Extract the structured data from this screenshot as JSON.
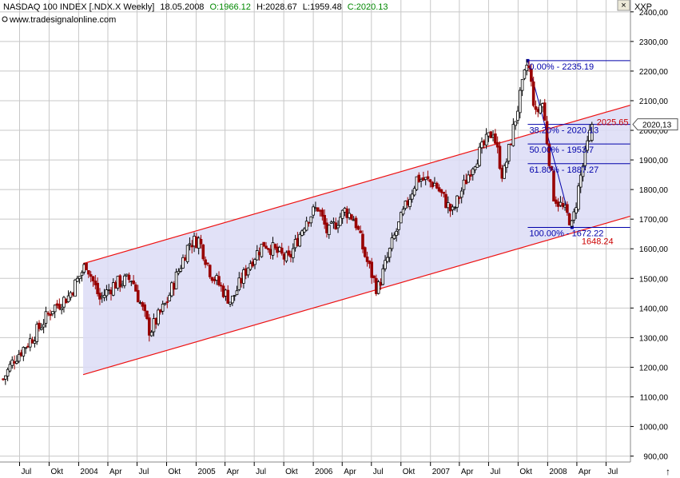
{
  "header": {
    "title": "NASDAQ 100 INDEX [.NDX.X  Weekly]",
    "date": "18.05.2008",
    "open": "O:1966.12",
    "high": "H:2028.67",
    "low": "L:1959.48",
    "close": "C:2020.13",
    "source": "www.tradesignalonline.com",
    "symbol": "XXP"
  },
  "window_buttons": {
    "close": "×",
    "scroll": "↑"
  },
  "price_badge": "2020,13",
  "colors": {
    "up": "#000000",
    "down": "#990000",
    "channel_fill": "#dcdcf6",
    "channel_line": "#ee1111",
    "fib": "#0000aa",
    "grid": "#c8c8c8"
  },
  "chart_data": {
    "type": "candlestick",
    "title": "NASDAQ 100 INDEX [.NDX.X  Weekly]",
    "y_ticks": [
      "900,00",
      "1000,00",
      "1100,00",
      "1200,00",
      "1300,00",
      "1400,00",
      "1500,00",
      "1600,00",
      "1700,00",
      "1800,00",
      "1900,00",
      "2000,00",
      "2100,00",
      "2200,00",
      "2300,00",
      "2400,00"
    ],
    "ylim": [
      880,
      2440
    ],
    "x_ticks": [
      {
        "label": "Jul",
        "date": "2003-07-01"
      },
      {
        "label": "Okt",
        "date": "2003-10-01"
      },
      {
        "label": "2004",
        "date": "2004-01-01"
      },
      {
        "label": "Apr",
        "date": "2004-04-01"
      },
      {
        "label": "Jul",
        "date": "2004-07-01"
      },
      {
        "label": "Okt",
        "date": "2004-10-01"
      },
      {
        "label": "2005",
        "date": "2005-01-01"
      },
      {
        "label": "Apr",
        "date": "2005-04-01"
      },
      {
        "label": "Jul",
        "date": "2005-07-01"
      },
      {
        "label": "Okt",
        "date": "2005-10-01"
      },
      {
        "label": "2006",
        "date": "2006-01-01"
      },
      {
        "label": "Apr",
        "date": "2006-04-01"
      },
      {
        "label": "Jul",
        "date": "2006-07-01"
      },
      {
        "label": "Okt",
        "date": "2006-10-01"
      },
      {
        "label": "2007",
        "date": "2007-01-01"
      },
      {
        "label": "Apr",
        "date": "2007-04-01"
      },
      {
        "label": "Jul",
        "date": "2007-07-01"
      },
      {
        "label": "Okt",
        "date": "2007-10-01"
      },
      {
        "label": "2008",
        "date": "2008-01-01"
      },
      {
        "label": "Apr",
        "date": "2008-04-01"
      },
      {
        "label": "Jul",
        "date": "2008-07-01"
      }
    ],
    "xlim": [
      "2003-05-01",
      "2008-09-15"
    ],
    "grid": true,
    "price_waypoints": [
      {
        "date": "2003-05-11",
        "close": 1160
      },
      {
        "date": "2003-06-15",
        "close": 1230
      },
      {
        "date": "2003-08-10",
        "close": 1300
      },
      {
        "date": "2003-10-12",
        "close": 1400
      },
      {
        "date": "2003-12-01",
        "close": 1440
      },
      {
        "date": "2004-01-25",
        "close": 1550
      },
      {
        "date": "2004-03-07",
        "close": 1430
      },
      {
        "date": "2004-04-20",
        "close": 1480
      },
      {
        "date": "2004-06-15",
        "close": 1500
      },
      {
        "date": "2004-08-10",
        "close": 1320
      },
      {
        "date": "2004-10-01",
        "close": 1420
      },
      {
        "date": "2004-12-10",
        "close": 1620
      },
      {
        "date": "2005-01-10",
        "close": 1630
      },
      {
        "date": "2005-02-15",
        "close": 1520
      },
      {
        "date": "2005-04-20",
        "close": 1420
      },
      {
        "date": "2005-06-15",
        "close": 1550
      },
      {
        "date": "2005-08-01",
        "close": 1620
      },
      {
        "date": "2005-10-15",
        "close": 1560
      },
      {
        "date": "2005-12-10",
        "close": 1700
      },
      {
        "date": "2006-01-15",
        "close": 1740
      },
      {
        "date": "2006-02-15",
        "close": 1650
      },
      {
        "date": "2006-04-10",
        "close": 1730
      },
      {
        "date": "2006-05-10",
        "close": 1700
      },
      {
        "date": "2006-06-10",
        "close": 1580
      },
      {
        "date": "2006-07-20",
        "close": 1460
      },
      {
        "date": "2006-09-10",
        "close": 1640
      },
      {
        "date": "2006-11-20",
        "close": 1840
      },
      {
        "date": "2007-01-15",
        "close": 1820
      },
      {
        "date": "2007-03-10",
        "close": 1720
      },
      {
        "date": "2007-05-10",
        "close": 1880
      },
      {
        "date": "2007-07-15",
        "close": 2000
      },
      {
        "date": "2007-08-15",
        "close": 1840
      },
      {
        "date": "2007-10-31",
        "close": 2235
      },
      {
        "date": "2007-11-25",
        "close": 2050
      },
      {
        "date": "2007-12-15",
        "close": 2100
      },
      {
        "date": "2008-01-20",
        "close": 1780
      },
      {
        "date": "2008-03-10",
        "close": 1700
      },
      {
        "date": "2008-03-17",
        "close": 1672
      },
      {
        "date": "2008-04-10",
        "close": 1830
      },
      {
        "date": "2008-05-18",
        "close": 2020
      }
    ],
    "last_bar": {
      "date": "2008-05-18",
      "open": 1966.12,
      "high": 2028.67,
      "low": 1959.48,
      "close": 2020.13
    },
    "channel": {
      "upper": [
        {
          "date": "2004-01-15",
          "value": 1550
        },
        {
          "date": "2008-09-15",
          "value": 2085
        }
      ],
      "lower": [
        {
          "date": "2004-01-15",
          "value": 1175
        },
        {
          "date": "2008-09-15",
          "value": 1710
        }
      ]
    },
    "fibonacci": {
      "high": {
        "date": "2007-10-31",
        "value": 2235.19
      },
      "low": {
        "date": "2008-03-17",
        "value": 1672.22
      },
      "levels": [
        {
          "label": "0.00% - 2235.19",
          "value": 2235.19
        },
        {
          "label": "38.20% - 2020.13",
          "value": 2020.13
        },
        {
          "label": "50.00% - 1953.7",
          "value": 1953.7
        },
        {
          "label": "61.80% - 1887.27",
          "value": 1887.27
        },
        {
          "label": "100.00% - 1672.22",
          "value": 1672.22
        }
      ],
      "red_labels": [
        {
          "label": "2025.65",
          "value": 2025.65,
          "date": "2008-05-18"
        },
        {
          "label": "1648.24",
          "value": 1648.24,
          "date": "2008-04-01"
        }
      ]
    }
  }
}
